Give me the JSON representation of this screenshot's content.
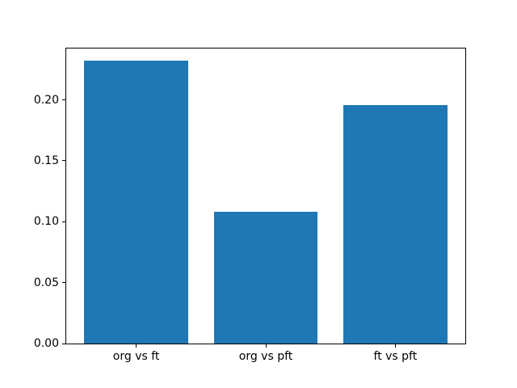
{
  "chart_data": {
    "type": "bar",
    "title": "",
    "xlabel": "",
    "ylabel": "",
    "categories": [
      "org vs ft",
      "org vs pft",
      "ft vs pft"
    ],
    "values": [
      0.232,
      0.108,
      0.196
    ],
    "ylim": [
      0,
      0.2422
    ],
    "xlim": [
      -0.54,
      2.54
    ],
    "yticks": [
      0.0,
      0.05,
      0.1,
      0.15,
      0.2
    ],
    "ytick_labels": [
      "0.00",
      "0.05",
      "0.10",
      "0.15",
      "0.20"
    ],
    "bar_width": 0.8,
    "bar_color": "#1f77b4",
    "grid": false,
    "legend": null
  },
  "colors": {
    "background": "#ffffff",
    "spine": "#000000",
    "text": "#000000"
  }
}
